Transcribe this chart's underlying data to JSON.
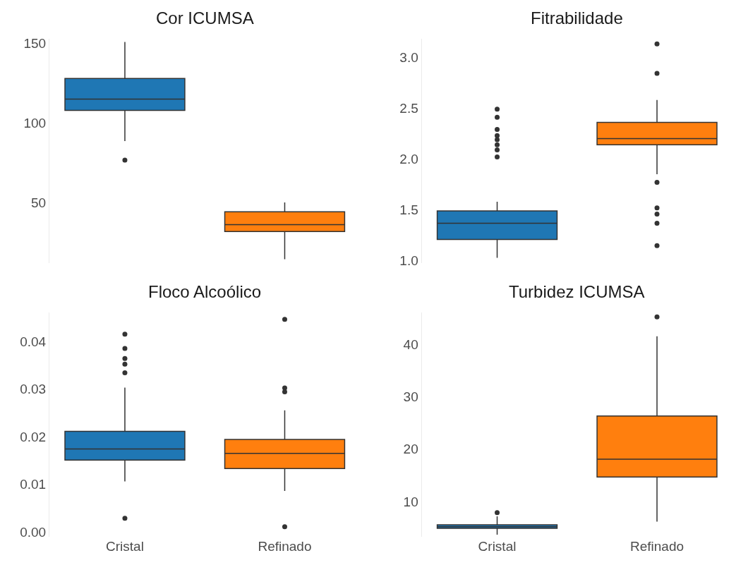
{
  "chart_data": [
    {
      "type": "box",
      "title": "Cor ICUMSA",
      "categories": [
        "Cristal",
        "Refinado"
      ],
      "colors": [
        "#1f77b4",
        "#ff7f0e"
      ],
      "ylim": [
        12,
        153
      ],
      "yticks": [
        50,
        100,
        150
      ],
      "grid": false,
      "tick_labels": "y",
      "boxes": [
        {
          "low": 88.7,
          "q1": 108,
          "median": 115,
          "q3": 128,
          "high": 151,
          "outliers": [
            76.7
          ]
        },
        {
          "low": 14.3,
          "q1": 31.7,
          "median": 36,
          "q3": 44.1,
          "high": 50
        }
      ]
    },
    {
      "type": "box",
      "title": "Fitrabilidade",
      "categories": [
        "Cristal",
        "Refinado"
      ],
      "colors": [
        "#1f77b4",
        "#ff7f0e"
      ],
      "ylim": [
        0.98,
        3.18
      ],
      "yticks": [
        {
          "value": 1,
          "label": "1.0"
        },
        1.5,
        {
          "value": 2,
          "label": "2.0"
        },
        2.5,
        {
          "value": 3,
          "label": "3.0"
        }
      ],
      "grid": false,
      "tick_labels": "y",
      "boxes": [
        {
          "low": 1.03,
          "q1": 1.21,
          "median": 1.37,
          "q3": 1.49,
          "high": 1.58,
          "outliers": [
            2.49,
            2.41,
            2.29,
            2.23,
            2.19,
            2.14,
            2.09,
            2.02
          ]
        },
        {
          "low": 1.85,
          "q1": 2.14,
          "median": 2.2,
          "q3": 2.36,
          "high": 2.58,
          "outliers": [
            3.13,
            2.84,
            1.77,
            1.52,
            1.46,
            1.37,
            1.15
          ]
        }
      ]
    },
    {
      "type": "box",
      "title": "Floco Alcoólico",
      "categories": [
        "Cristal",
        "Refinado"
      ],
      "colors": [
        "#1f77b4",
        "#ff7f0e"
      ],
      "ylim": [
        -0.001,
        0.046
      ],
      "yticks": [
        {
          "value": 0,
          "label": "0.00"
        },
        0.01,
        {
          "value": 0.02,
          "label": "0.02"
        },
        0.03,
        {
          "value": 0.04,
          "label": "0.04"
        }
      ],
      "grid": false,
      "boxes": [
        {
          "low": 0.0106,
          "q1": 0.0151,
          "median": 0.0174,
          "q3": 0.0211,
          "high": 0.0303,
          "outliers": [
            0.0415,
            0.0385,
            0.0364,
            0.0352,
            0.0334,
            0.0029
          ]
        },
        {
          "low": 0.0086,
          "q1": 0.0133,
          "median": 0.0165,
          "q3": 0.0194,
          "high": 0.0255,
          "outliers": [
            0.0446,
            0.0302,
            0.0294,
            0.0011
          ]
        }
      ]
    },
    {
      "type": "box",
      "title": "Turbidez ICUMSA",
      "categories": [
        "Cristal",
        "Refinado"
      ],
      "colors": [
        "#1f77b4",
        "#ff7f0e"
      ],
      "ylim": [
        3.3,
        46
      ],
      "yticks": [
        10,
        20,
        30,
        40
      ],
      "grid": false,
      "boxes": [
        {
          "low": 3.7,
          "q1": 4.9,
          "median": 5.2,
          "q3": 5.6,
          "high": 7.2,
          "outliers": [
            7.9
          ]
        },
        {
          "low": 6.2,
          "q1": 14.7,
          "median": 18.1,
          "q3": 26.3,
          "high": 41.5,
          "outliers": [
            45.2
          ]
        }
      ]
    }
  ]
}
